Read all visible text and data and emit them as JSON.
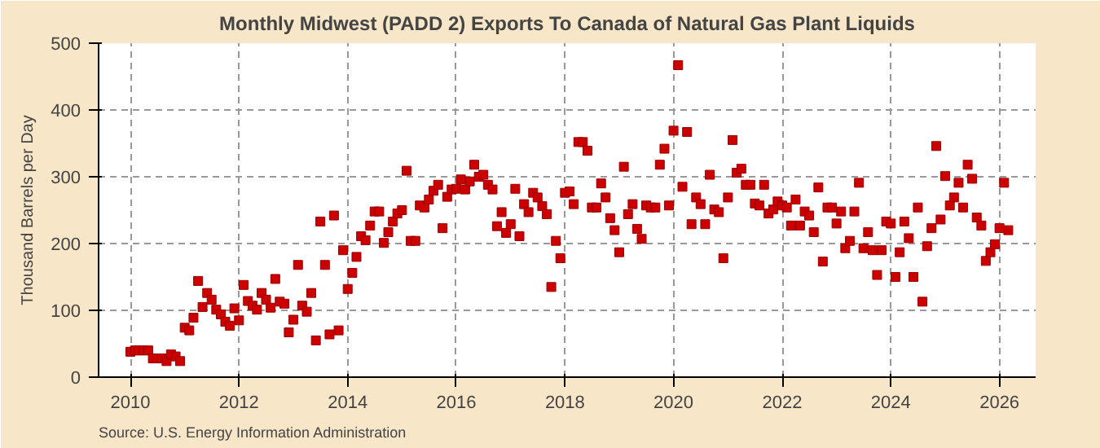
{
  "chart_data": {
    "type": "scatter",
    "title": "Monthly Midwest (PADD 2) Exports To Canada of Natural Gas Plant Liquids",
    "ylabel": "Thousand Barrels per Day",
    "annotations": [
      "Source: U.S. Energy Information Administration"
    ],
    "marker": "square",
    "grid": true,
    "xlim": [
      "2009-06",
      "2026-09"
    ],
    "xticks": [
      "2010",
      "2012",
      "2014",
      "2016",
      "2018",
      "2020",
      "2022",
      "2024",
      "2026"
    ],
    "ylim": [
      0,
      500
    ],
    "yticks": [
      0,
      100,
      200,
      300,
      400,
      500
    ],
    "x": [
      "2010-01",
      "2010-02",
      "2010-03",
      "2010-04",
      "2010-05",
      "2010-06",
      "2010-07",
      "2010-08",
      "2010-09",
      "2010-10",
      "2010-11",
      "2010-12",
      "2011-01",
      "2011-02",
      "2011-03",
      "2011-04",
      "2011-05",
      "2011-06",
      "2011-07",
      "2011-08",
      "2011-09",
      "2011-10",
      "2011-11",
      "2011-12",
      "2012-01",
      "2012-02",
      "2012-03",
      "2012-04",
      "2012-05",
      "2012-06",
      "2012-07",
      "2012-08",
      "2012-09",
      "2012-10",
      "2012-11",
      "2012-12",
      "2013-01",
      "2013-02",
      "2013-03",
      "2013-04",
      "2013-05",
      "2013-06",
      "2013-07",
      "2013-08",
      "2013-09",
      "2013-10",
      "2013-11",
      "2013-12",
      "2014-01",
      "2014-02",
      "2014-03",
      "2014-04",
      "2014-05",
      "2014-06",
      "2014-07",
      "2014-08",
      "2014-09",
      "2014-10",
      "2014-11",
      "2014-12",
      "2015-01",
      "2015-02",
      "2015-03",
      "2015-04",
      "2015-05",
      "2015-06",
      "2015-07",
      "2015-08",
      "2015-09",
      "2015-10",
      "2015-11",
      "2015-12",
      "2016-01",
      "2016-02",
      "2016-03",
      "2016-04",
      "2016-05",
      "2016-06",
      "2016-07",
      "2016-08",
      "2016-09",
      "2016-10",
      "2016-11",
      "2016-12",
      "2017-01",
      "2017-02",
      "2017-03",
      "2017-04",
      "2017-05",
      "2017-06",
      "2017-07",
      "2017-08",
      "2017-09",
      "2017-10",
      "2017-11",
      "2017-12",
      "2018-01",
      "2018-02",
      "2018-03",
      "2018-04",
      "2018-05",
      "2018-06",
      "2018-07",
      "2018-08",
      "2018-09",
      "2018-10",
      "2018-11",
      "2018-12",
      "2019-01",
      "2019-02",
      "2019-03",
      "2019-04",
      "2019-05",
      "2019-06",
      "2019-07",
      "2019-08",
      "2019-09",
      "2019-10",
      "2019-11",
      "2019-12",
      "2020-01",
      "2020-02",
      "2020-03",
      "2020-04",
      "2020-05",
      "2020-06",
      "2020-07",
      "2020-08",
      "2020-09",
      "2020-10",
      "2020-11",
      "2020-12",
      "2021-01",
      "2021-02",
      "2021-03",
      "2021-04",
      "2021-05",
      "2021-06",
      "2021-07",
      "2021-08",
      "2021-09",
      "2021-10",
      "2021-11",
      "2021-12",
      "2022-01",
      "2022-02",
      "2022-03",
      "2022-04",
      "2022-05",
      "2022-06",
      "2022-07",
      "2022-08",
      "2022-09",
      "2022-10",
      "2022-11",
      "2022-12",
      "2023-01",
      "2023-02",
      "2023-03",
      "2023-04",
      "2023-05",
      "2023-06",
      "2023-07",
      "2023-08",
      "2023-09",
      "2023-10",
      "2023-11",
      "2023-12",
      "2024-01",
      "2024-02",
      "2024-03",
      "2024-04",
      "2024-05",
      "2024-06",
      "2024-07",
      "2024-08",
      "2024-09",
      "2024-10",
      "2024-11",
      "2024-12",
      "2025-01",
      "2025-02",
      "2025-03",
      "2025-04",
      "2025-05",
      "2025-06",
      "2025-07",
      "2025-08",
      "2025-09",
      "2025-10",
      "2025-11",
      "2025-12",
      "2026-01",
      "2026-02",
      "2026-03"
    ],
    "series": [
      {
        "color": "#cc0000",
        "values": [
          38,
          40,
          40,
          40,
          40,
          28,
          28,
          28,
          24,
          34,
          31,
          24,
          74,
          70,
          89,
          144,
          105,
          126,
          116,
          101,
          94,
          83,
          77,
          103,
          85,
          138,
          114,
          107,
          101,
          126,
          116,
          104,
          147,
          113,
          110,
          67,
          86,
          168,
          107,
          98,
          126,
          55,
          233,
          168,
          64,
          242,
          70,
          190,
          132,
          156,
          180,
          211,
          205,
          227,
          248,
          248,
          201,
          217,
          233,
          245,
          250,
          309,
          204,
          204,
          257,
          254,
          266,
          279,
          288,
          223,
          270,
          281,
          282,
          296,
          281,
          293,
          318,
          300,
          303,
          288,
          281,
          226,
          247,
          216,
          229,
          282,
          211,
          259,
          247,
          276,
          269,
          256,
          244,
          135,
          204,
          178,
          276,
          278,
          259,
          352,
          352,
          339,
          254,
          254,
          290,
          269,
          238,
          220,
          187,
          315,
          244,
          259,
          222,
          207,
          257,
          254,
          254,
          318,
          342,
          257,
          369,
          467,
          285,
          367,
          229,
          269,
          259,
          229,
          303,
          251,
          247,
          178,
          269,
          355,
          306,
          312,
          288,
          288,
          260,
          257,
          288,
          245,
          251,
          263,
          257,
          254,
          227,
          266,
          227,
          248,
          242,
          217,
          284,
          173,
          254,
          254,
          230,
          248,
          193,
          204,
          248,
          291,
          193,
          217,
          190,
          153,
          190,
          233,
          230,
          150,
          187,
          233,
          208,
          150,
          254,
          113,
          196,
          223,
          346,
          236,
          301,
          257,
          269,
          291,
          254,
          318,
          297,
          239,
          227,
          174,
          187,
          199,
          223,
          291,
          220
        ]
      }
    ]
  }
}
